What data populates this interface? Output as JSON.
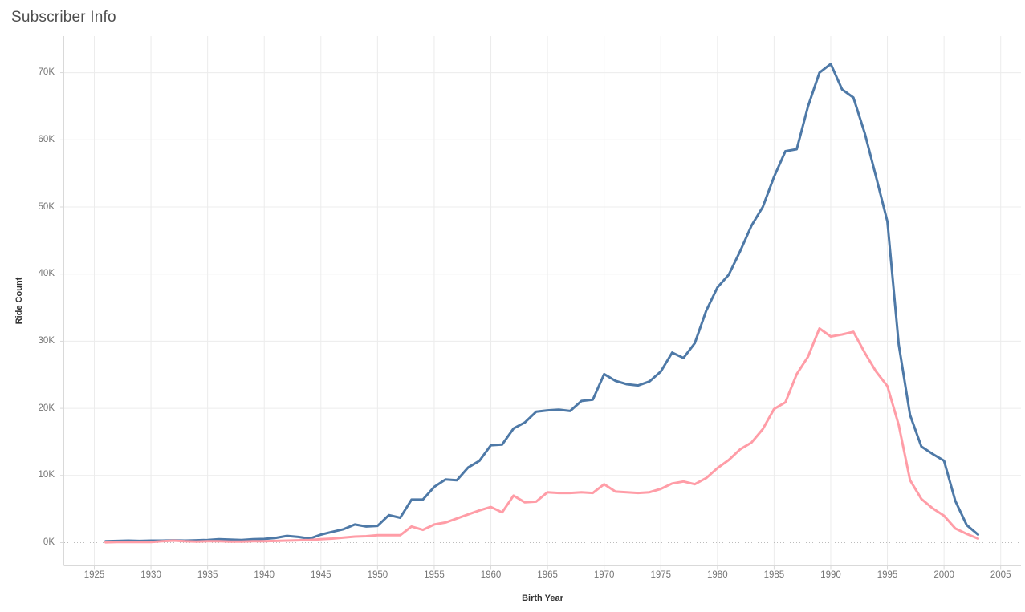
{
  "title": "Subscriber Info",
  "colors": {
    "blue_series": "#4e79a7",
    "pink_series": "#ff9da7",
    "grid": "#ececec",
    "zero_line": "#bcbcbc",
    "axis_rule": "#d9d9d9",
    "tick_label": "#757575",
    "axis_title": "#333333",
    "chart_title": "#4e4e4e"
  },
  "chart_data": {
    "type": "line",
    "title": "Subscriber Info",
    "xlabel": "Birth Year",
    "ylabel": "Ride Count",
    "grid": true,
    "legend": "none",
    "zero_line_style": "dotted",
    "value_unit": "K",
    "x_ticks": [
      1925,
      1930,
      1935,
      1940,
      1945,
      1950,
      1955,
      1960,
      1965,
      1970,
      1975,
      1980,
      1985,
      1990,
      1995,
      2000,
      2005
    ],
    "x_tick_labels": [
      "1925",
      "1930",
      "1935",
      "1940",
      "1945",
      "1950",
      "1955",
      "1960",
      "1965",
      "1970",
      "1975",
      "1980",
      "1985",
      "1990",
      "1995",
      "2000",
      "2005"
    ],
    "y_ticks_k": [
      0,
      10,
      20,
      30,
      40,
      50,
      60,
      70
    ],
    "y_tick_labels": [
      "0K",
      "10K",
      "20K",
      "30K",
      "40K",
      "50K",
      "60K",
      "70K"
    ],
    "xlim": [
      1922.3,
      2006.9
    ],
    "ylim_k": [
      -3.4,
      75.4
    ],
    "x": [
      1926,
      1927,
      1928,
      1929,
      1930,
      1931,
      1932,
      1933,
      1934,
      1935,
      1936,
      1937,
      1938,
      1939,
      1940,
      1941,
      1942,
      1943,
      1944,
      1945,
      1946,
      1947,
      1948,
      1949,
      1950,
      1951,
      1952,
      1953,
      1954,
      1955,
      1956,
      1957,
      1958,
      1959,
      1960,
      1961,
      1962,
      1963,
      1964,
      1965,
      1966,
      1967,
      1968,
      1969,
      1970,
      1971,
      1972,
      1973,
      1974,
      1975,
      1976,
      1977,
      1978,
      1979,
      1980,
      1981,
      1982,
      1983,
      1984,
      1985,
      1986,
      1987,
      1988,
      1989,
      1990,
      1991,
      1992,
      1993,
      1994,
      1995,
      1996,
      1997,
      1998,
      1999,
      2000,
      2001,
      2002,
      2003
    ],
    "series": [
      {
        "name": "blue-line",
        "color": "#4e79a7",
        "values_k": [
          0.2,
          0.25,
          0.3,
          0.25,
          0.3,
          0.3,
          0.35,
          0.3,
          0.35,
          0.4,
          0.5,
          0.45,
          0.4,
          0.5,
          0.55,
          0.7,
          1.0,
          0.85,
          0.6,
          1.2,
          1.6,
          2.0,
          2.7,
          2.4,
          2.5,
          4.1,
          3.7,
          6.4,
          6.4,
          8.3,
          9.4,
          9.3,
          11.2,
          12.2,
          14.5,
          14.6,
          17.0,
          17.9,
          19.5,
          19.7,
          19.8,
          19.6,
          21.1,
          21.3,
          25.1,
          24.1,
          23.6,
          23.4,
          24.0,
          25.5,
          28.3,
          27.5,
          29.7,
          34.5,
          38.0,
          39.9,
          43.4,
          47.2,
          50.0,
          54.5,
          58.3,
          58.6,
          65.0,
          70.0,
          71.3,
          67.5,
          66.3,
          61.0,
          54.5,
          47.8,
          29.5,
          19.0,
          14.3,
          13.2,
          12.2,
          6.2,
          2.6,
          1.2
        ]
      },
      {
        "name": "pink-line",
        "color": "#ff9da7",
        "values_k": [
          0.05,
          0.08,
          0.1,
          0.08,
          0.1,
          0.2,
          0.3,
          0.2,
          0.15,
          0.2,
          0.2,
          0.15,
          0.15,
          0.2,
          0.2,
          0.25,
          0.3,
          0.35,
          0.4,
          0.5,
          0.6,
          0.75,
          0.9,
          0.95,
          1.1,
          1.1,
          1.1,
          2.4,
          1.9,
          2.7,
          3.0,
          3.6,
          4.2,
          4.8,
          5.3,
          4.5,
          7.0,
          6.0,
          6.1,
          7.5,
          7.4,
          7.4,
          7.5,
          7.4,
          8.7,
          7.6,
          7.5,
          7.4,
          7.5,
          8.0,
          8.8,
          9.1,
          8.7,
          9.6,
          11.1,
          12.3,
          13.9,
          14.9,
          16.9,
          19.9,
          20.9,
          25.1,
          27.7,
          31.9,
          30.7,
          31.0,
          31.4,
          28.3,
          25.5,
          23.3,
          17.5,
          9.3,
          6.5,
          5.1,
          4.0,
          2.1,
          1.3,
          0.6
        ]
      }
    ]
  }
}
